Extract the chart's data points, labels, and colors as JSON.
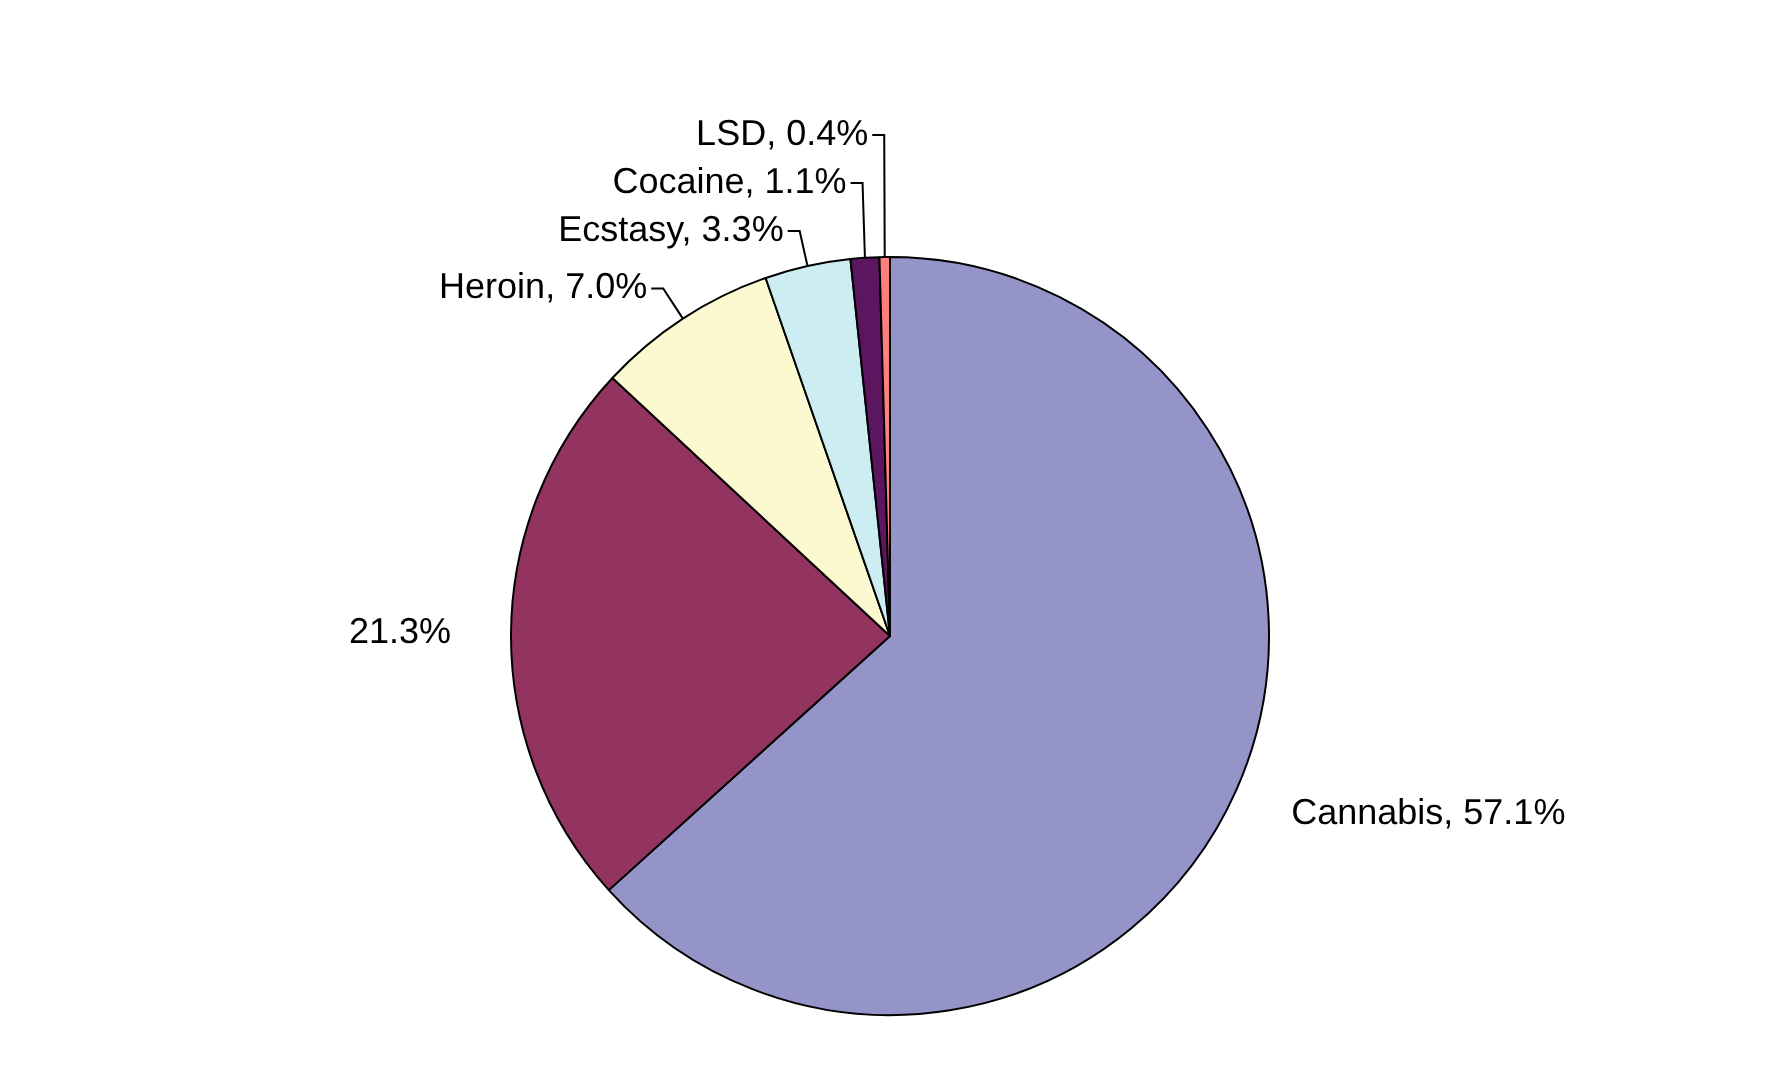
{
  "chart_data": {
    "type": "pie",
    "categories": [
      "Cannabis",
      null,
      "Heroin",
      "Ecstasy",
      "Cocaine",
      "LSD"
    ],
    "values": [
      57.1,
      21.3,
      7.0,
      3.3,
      1.1,
      0.4
    ],
    "colors": [
      "#9494c8",
      "#933360",
      "#fcf8d0",
      "#cceef2",
      "#5c1660",
      "#ff7f7f"
    ],
    "value_labels": [
      "57.1%",
      "21.3%",
      "7.0%",
      "3.3%",
      "1.1%",
      "0.4%"
    ],
    "legend": false
  }
}
